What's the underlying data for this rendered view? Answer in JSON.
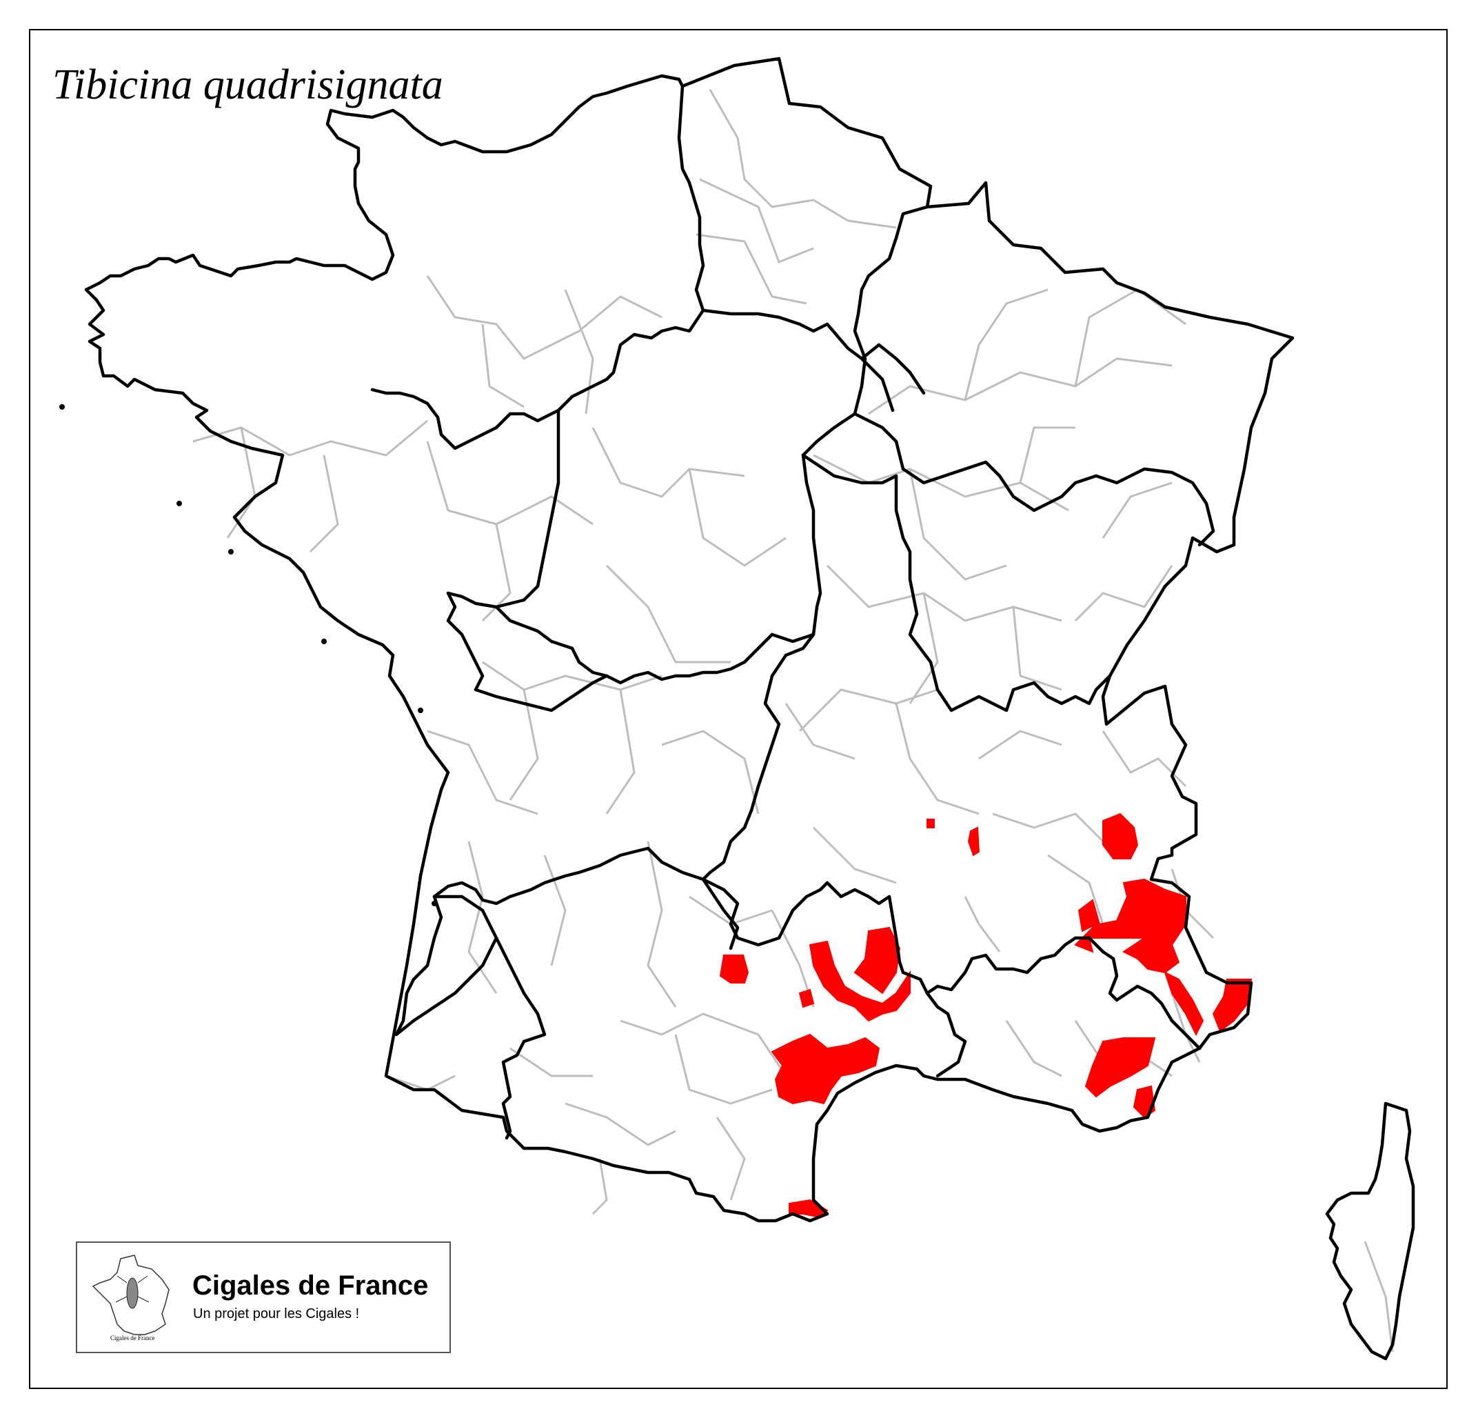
{
  "map": {
    "title": "Tibicina quadrisignata",
    "legend": {
      "project_name": "Cigales de France",
      "tagline": "Un projet pour les Cigales !",
      "mini_caption": "Cigales de France"
    },
    "colors": {
      "presence": "#ff0000",
      "region_border": "#000000",
      "department_border": "#bbbbbb",
      "background": "#ffffff"
    },
    "presence_meaning": "occurrence areas shown in red"
  }
}
